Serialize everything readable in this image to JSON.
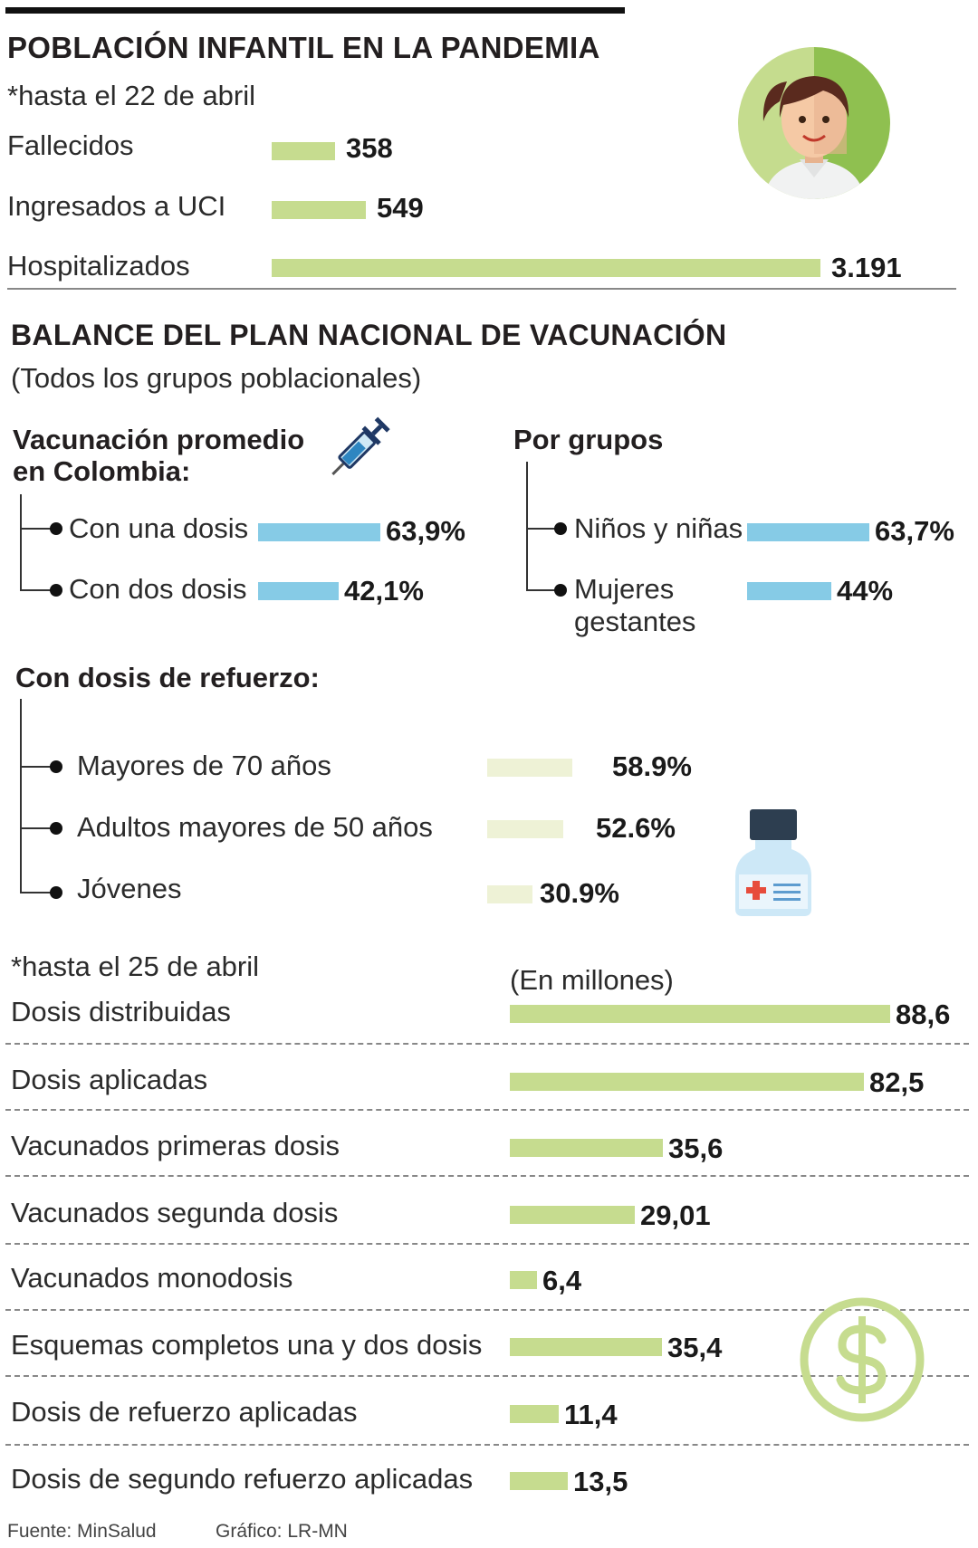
{
  "header": {
    "title": "POBLACIÓN INFANTIL EN LA PANDEMIA",
    "date_note": "*hasta el 22 de abril"
  },
  "colors": {
    "green": "#c6dc8f",
    "blue": "#86cbe6",
    "pale": "#eef2d6"
  },
  "infant": {
    "rows": [
      {
        "label": "Fallecidos",
        "value": "358"
      },
      {
        "label": "Ingresados a UCI",
        "value": "549"
      },
      {
        "label": "Hospitalizados",
        "value": "3.191"
      }
    ]
  },
  "balance": {
    "title": "BALANCE DEL PLAN NACIONAL DE VACUNACIÓN",
    "subtitle": "(Todos los grupos poblacionales)"
  },
  "avg": {
    "title_line1": "Vacunación promedio",
    "title_line2": "en Colombia:",
    "rows": [
      {
        "label": "Con una dosis",
        "value": "63,9%"
      },
      {
        "label": "Con dos dosis",
        "value": "42,1%"
      }
    ]
  },
  "groups": {
    "title": "Por grupos",
    "rows": [
      {
        "label": "Niños y niñas",
        "value": "63,7%"
      },
      {
        "label_line1": "Mujeres",
        "label_line2": "gestantes",
        "value": "44%"
      }
    ]
  },
  "booster": {
    "title": "Con dosis de refuerzo:",
    "rows": [
      {
        "label": "Mayores de 70 años",
        "value": "58.9%"
      },
      {
        "label": "Adultos mayores de 50 años",
        "value": "52.6%"
      },
      {
        "label": "Jóvenes",
        "value": "30.9%"
      }
    ]
  },
  "doses": {
    "date_note": "*hasta el 25 de abril",
    "unit": "(En millones)",
    "rows": [
      {
        "label": "Dosis distribuidas",
        "value": "88,6"
      },
      {
        "label": "Dosis aplicadas",
        "value": "82,5"
      },
      {
        "label": "Vacunados primeras dosis",
        "value": "35,6"
      },
      {
        "label": "Vacunados segunda dosis",
        "value": "29,01"
      },
      {
        "label": "Vacunados monodosis",
        "value": "6,4"
      },
      {
        "label": "Esquemas completos una y dos dosis",
        "value": "35,4"
      },
      {
        "label": "Dosis de refuerzo aplicadas",
        "value": "11,4"
      },
      {
        "label": "Dosis de segundo refuerzo aplicadas",
        "value": "13,5"
      }
    ]
  },
  "footer": {
    "source": "Fuente: MinSalud",
    "credit": "Gráfico: LR-MN"
  },
  "chart_data": [
    {
      "type": "bar",
      "title": "POBLACIÓN INFANTIL EN LA PANDEMIA",
      "categories": [
        "Fallecidos",
        "Ingresados a UCI",
        "Hospitalizados"
      ],
      "values": [
        358,
        549,
        3191
      ]
    },
    {
      "type": "bar",
      "title": "Vacunación promedio en Colombia",
      "categories": [
        "Con una dosis",
        "Con dos dosis"
      ],
      "values": [
        63.9,
        42.1
      ],
      "unit": "%"
    },
    {
      "type": "bar",
      "title": "Por grupos",
      "categories": [
        "Niños y niñas",
        "Mujeres gestantes"
      ],
      "values": [
        63.7,
        44
      ],
      "unit": "%"
    },
    {
      "type": "bar",
      "title": "Con dosis de refuerzo",
      "categories": [
        "Mayores de 70 años",
        "Adultos mayores de 50 años",
        "Jóvenes"
      ],
      "values": [
        58.9,
        52.6,
        30.9
      ],
      "unit": "%"
    },
    {
      "type": "bar",
      "title": "Dosis (En millones)",
      "categories": [
        "Dosis distribuidas",
        "Dosis aplicadas",
        "Vacunados primeras dosis",
        "Vacunados segunda dosis",
        "Vacunados monodosis",
        "Esquemas completos una y dos dosis",
        "Dosis de refuerzo aplicadas",
        "Dosis de segundo refuerzo aplicadas"
      ],
      "values": [
        88.6,
        82.5,
        35.6,
        29.01,
        6.4,
        35.4,
        11.4,
        13.5
      ]
    }
  ]
}
